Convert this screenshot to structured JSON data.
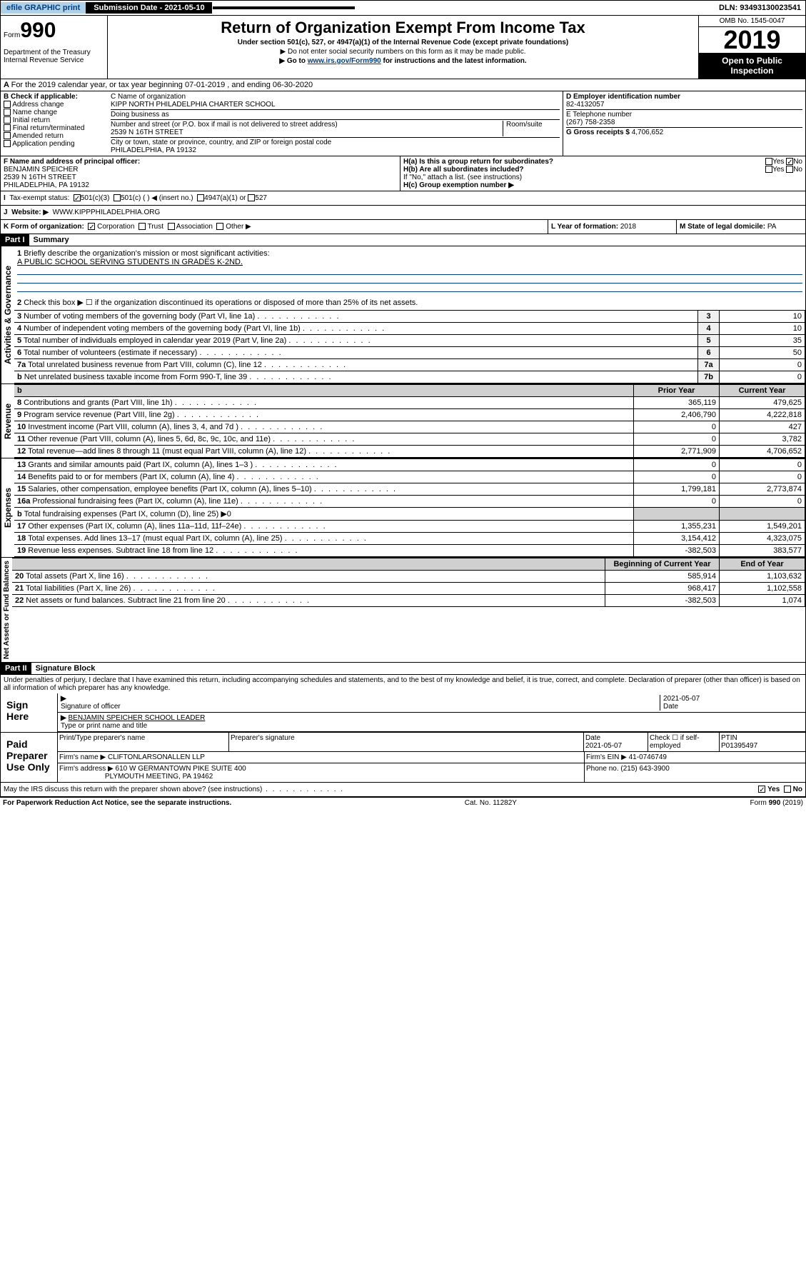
{
  "topbar": {
    "efile": "efile GRAPHIC print",
    "submission": "Submission Date - 2021-05-10",
    "dln": "DLN: 93493130023541"
  },
  "header": {
    "form_label": "Form",
    "form_num": "990",
    "dept": "Department of the Treasury\nInternal Revenue Service",
    "title": "Return of Organization Exempt From Income Tax",
    "subtitle": "Under section 501(c), 527, or 4947(a)(1) of the Internal Revenue Code (except private foundations)",
    "line1": "▶ Do not enter social security numbers on this form as it may be made public.",
    "line2_pre": "▶ Go to ",
    "line2_link": "www.irs.gov/Form990",
    "line2_post": " for instructions and the latest information.",
    "omb": "OMB No. 1545-0047",
    "year": "2019",
    "open": "Open to Public Inspection"
  },
  "period": {
    "text": "For the 2019 calendar year, or tax year beginning 07-01-2019     , and ending 06-30-2020"
  },
  "boxB": {
    "title": "B Check if applicable:",
    "items": [
      "Address change",
      "Name change",
      "Initial return",
      "Final return/terminated",
      "Amended return",
      "Application pending"
    ]
  },
  "boxC": {
    "name_label": "C Name of organization",
    "name": "KIPP NORTH PHILADELPHIA CHARTER SCHOOL",
    "dba_label": "Doing business as",
    "addr_label": "Number and street (or P.O. box if mail is not delivered to street address)",
    "room": "Room/suite",
    "addr": "2539 N 16TH STREET",
    "city_label": "City or town, state or province, country, and ZIP or foreign postal code",
    "city": "PHILADELPHIA, PA  19132"
  },
  "boxD": {
    "label": "D Employer identification number",
    "val": "82-4132057"
  },
  "boxE": {
    "label": "E Telephone number",
    "val": "(267) 758-2358"
  },
  "boxG": {
    "label": "G Gross receipts $",
    "val": "4,706,652"
  },
  "boxF": {
    "label": "F  Name and address of principal officer:",
    "name": "BENJAMIN SPEICHER",
    "addr1": "2539 N 16TH STREET",
    "addr2": "PHILADELPHIA, PA  19132"
  },
  "boxH": {
    "a": "H(a)  Is this a group return for subordinates?",
    "a_yes": "Yes",
    "a_no": "No",
    "b": "H(b)  Are all subordinates included?",
    "b_note": "If \"No,\" attach a list. (see instructions)",
    "c": "H(c)  Group exemption number ▶"
  },
  "boxI": {
    "label": "Tax-exempt status:",
    "opts": [
      "501(c)(3)",
      "501(c) (   ) ◀ (insert no.)",
      "4947(a)(1) or",
      "527"
    ]
  },
  "boxJ": {
    "label": "Website: ▶",
    "val": "WWW.KIPPPHILADELPHIA.ORG"
  },
  "boxK": {
    "label": "K Form of organization:",
    "opts": [
      "Corporation",
      "Trust",
      "Association",
      "Other ▶"
    ]
  },
  "boxL": {
    "label": "L Year of formation:",
    "val": "2018"
  },
  "boxM": {
    "label": "M State of legal domicile:",
    "val": "PA"
  },
  "part1": {
    "hdr": "Part I",
    "title": "Summary"
  },
  "summary": {
    "q1": "Briefly describe the organization's mission or most significant activities:",
    "q1_ans": "A PUBLIC SCHOOL SERVING STUDENTS IN GRADES K-2ND.",
    "q2": "Check this box ▶ ☐  if the organization discontinued its operations or disposed of more than 25% of its net assets.",
    "lines": [
      {
        "n": "3",
        "t": "Number of voting members of the governing body (Part VI, line 1a)",
        "c": "3",
        "v": "10"
      },
      {
        "n": "4",
        "t": "Number of independent voting members of the governing body (Part VI, line 1b)",
        "c": "4",
        "v": "10"
      },
      {
        "n": "5",
        "t": "Total number of individuals employed in calendar year 2019 (Part V, line 2a)",
        "c": "5",
        "v": "35"
      },
      {
        "n": "6",
        "t": "Total number of volunteers (estimate if necessary)",
        "c": "6",
        "v": "50"
      },
      {
        "n": "7a",
        "t": "Total unrelated business revenue from Part VIII, column (C), line 12",
        "c": "7a",
        "v": "0"
      },
      {
        "n": "b",
        "t": "Net unrelated business taxable income from Form 990-T, line 39",
        "c": "7b",
        "v": "0"
      }
    ],
    "cols": {
      "prior": "Prior Year",
      "current": "Current Year",
      "beg": "Beginning of Current Year",
      "end": "End of Year"
    },
    "revenue": [
      {
        "n": "8",
        "t": "Contributions and grants (Part VIII, line 1h)",
        "p": "365,119",
        "c": "479,625"
      },
      {
        "n": "9",
        "t": "Program service revenue (Part VIII, line 2g)",
        "p": "2,406,790",
        "c": "4,222,818"
      },
      {
        "n": "10",
        "t": "Investment income (Part VIII, column (A), lines 3, 4, and 7d )",
        "p": "0",
        "c": "427"
      },
      {
        "n": "11",
        "t": "Other revenue (Part VIII, column (A), lines 5, 6d, 8c, 9c, 10c, and 11e)",
        "p": "0",
        "c": "3,782"
      },
      {
        "n": "12",
        "t": "Total revenue—add lines 8 through 11 (must equal Part VIII, column (A), line 12)",
        "p": "2,771,909",
        "c": "4,706,652"
      }
    ],
    "expenses": [
      {
        "n": "13",
        "t": "Grants and similar amounts paid (Part IX, column (A), lines 1–3 )",
        "p": "0",
        "c": "0"
      },
      {
        "n": "14",
        "t": "Benefits paid to or for members (Part IX, column (A), line 4)",
        "p": "0",
        "c": "0"
      },
      {
        "n": "15",
        "t": "Salaries, other compensation, employee benefits (Part IX, column (A), lines 5–10)",
        "p": "1,799,181",
        "c": "2,773,874"
      },
      {
        "n": "16a",
        "t": "Professional fundraising fees (Part IX, column (A), line 11e)",
        "p": "0",
        "c": "0"
      },
      {
        "n": "b",
        "t": "Total fundraising expenses (Part IX, column (D), line 25) ▶0",
        "p": "",
        "c": "",
        "grey": true
      },
      {
        "n": "17",
        "t": "Other expenses (Part IX, column (A), lines 11a–11d, 11f–24e)",
        "p": "1,355,231",
        "c": "1,549,201"
      },
      {
        "n": "18",
        "t": "Total expenses. Add lines 13–17 (must equal Part IX, column (A), line 25)",
        "p": "3,154,412",
        "c": "4,323,075"
      },
      {
        "n": "19",
        "t": "Revenue less expenses. Subtract line 18 from line 12",
        "p": "-382,503",
        "c": "383,577"
      }
    ],
    "netassets": [
      {
        "n": "20",
        "t": "Total assets (Part X, line 16)",
        "p": "585,914",
        "c": "1,103,632"
      },
      {
        "n": "21",
        "t": "Total liabilities (Part X, line 26)",
        "p": "968,417",
        "c": "1,102,558"
      },
      {
        "n": "22",
        "t": "Net assets or fund balances. Subtract line 21 from line 20",
        "p": "-382,503",
        "c": "1,074"
      }
    ]
  },
  "side_labels": {
    "gov": "Activities & Governance",
    "rev": "Revenue",
    "exp": "Expenses",
    "net": "Net Assets or Fund Balances"
  },
  "part2": {
    "hdr": "Part II",
    "title": "Signature Block",
    "penalty": "Under penalties of perjury, I declare that I have examined this return, including accompanying schedules and statements, and to the best of my knowledge and belief, it is true, correct, and complete. Declaration of preparer (other than officer) is based on all information of which preparer has any knowledge."
  },
  "sign": {
    "here": "Sign Here",
    "sig_officer": "Signature of officer",
    "date": "2021-05-07",
    "date_label": "Date",
    "name": "BENJAMIN SPEICHER  SCHOOL LEADER",
    "name_label": "Type or print name and title"
  },
  "paid": {
    "label": "Paid Preparer Use Only",
    "h1": "Print/Type preparer's name",
    "h2": "Preparer's signature",
    "h3": "Date",
    "h3v": "2021-05-07",
    "h4": "Check ☐ if self-employed",
    "h5": "PTIN",
    "h5v": "P01395497",
    "firm_label": "Firm's name    ▶",
    "firm": "CLIFTONLARSONALLEN LLP",
    "ein_label": "Firm's EIN ▶",
    "ein": "41-0746749",
    "addr_label": "Firm's address ▶",
    "addr1": "610 W GERMANTOWN PIKE SUITE 400",
    "addr2": "PLYMOUTH MEETING, PA  19462",
    "phone_label": "Phone no.",
    "phone": "(215) 643-3900"
  },
  "bottom": {
    "discuss": "May the IRS discuss this return with the preparer shown above? (see instructions)",
    "yes": "Yes",
    "no": "No",
    "paperwork": "For Paperwork Reduction Act Notice, see the separate instructions.",
    "cat": "Cat. No. 11282Y",
    "form": "Form 990 (2019)"
  }
}
